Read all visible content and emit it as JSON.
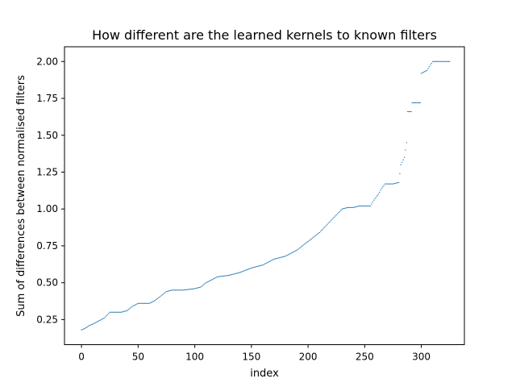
{
  "chart_data": {
    "type": "scatter",
    "title": "How different are the learned kernels to known filters",
    "xlabel": "index",
    "ylabel": "Sum of differences between normalised filters",
    "xlim": [
      -15,
      338
    ],
    "ylim": [
      0.08,
      2.1
    ],
    "xticks": [
      0,
      50,
      100,
      150,
      200,
      250,
      300
    ],
    "yticks": [
      0.25,
      0.5,
      0.75,
      1.0,
      1.25,
      1.5,
      1.75,
      2.0
    ],
    "ytick_labels": [
      "0.25",
      "0.50",
      "0.75",
      "1.00",
      "1.25",
      "1.50",
      "1.75",
      "2.00"
    ],
    "grid": false,
    "marker_color": "#1f77b4",
    "curve_points": [
      [
        0,
        0.18
      ],
      [
        3,
        0.19
      ],
      [
        7,
        0.21
      ],
      [
        10,
        0.22
      ],
      [
        15,
        0.24
      ],
      [
        20,
        0.26
      ],
      [
        25,
        0.3
      ],
      [
        30,
        0.3
      ],
      [
        35,
        0.3
      ],
      [
        40,
        0.31
      ],
      [
        45,
        0.34
      ],
      [
        50,
        0.36
      ],
      [
        55,
        0.36
      ],
      [
        60,
        0.36
      ],
      [
        65,
        0.38
      ],
      [
        70,
        0.41
      ],
      [
        75,
        0.44
      ],
      [
        80,
        0.45
      ],
      [
        90,
        0.45
      ],
      [
        100,
        0.46
      ],
      [
        105,
        0.47
      ],
      [
        110,
        0.5
      ],
      [
        115,
        0.52
      ],
      [
        120,
        0.54
      ],
      [
        130,
        0.55
      ],
      [
        140,
        0.57
      ],
      [
        150,
        0.6
      ],
      [
        160,
        0.62
      ],
      [
        165,
        0.64
      ],
      [
        170,
        0.66
      ],
      [
        180,
        0.68
      ],
      [
        185,
        0.7
      ],
      [
        190,
        0.72
      ],
      [
        195,
        0.75
      ],
      [
        200,
        0.78
      ],
      [
        205,
        0.81
      ],
      [
        210,
        0.84
      ],
      [
        215,
        0.88
      ],
      [
        220,
        0.92
      ],
      [
        225,
        0.96
      ],
      [
        230,
        1.0
      ],
      [
        235,
        1.01
      ],
      [
        240,
        1.01
      ],
      [
        245,
        1.02
      ],
      [
        255,
        1.02
      ],
      [
        258,
        1.06
      ],
      [
        262,
        1.1
      ],
      [
        265,
        1.14
      ],
      [
        268,
        1.17
      ],
      [
        275,
        1.17
      ],
      [
        280,
        1.18
      ],
      [
        282,
        1.3
      ],
      [
        285,
        1.35
      ],
      [
        287,
        1.45
      ],
      [
        288,
        1.66
      ],
      [
        291,
        1.66
      ],
      [
        292,
        1.72
      ],
      [
        299,
        1.72
      ],
      [
        300,
        1.92
      ],
      [
        305,
        1.94
      ],
      [
        310,
        2.0
      ],
      [
        325,
        2.0
      ]
    ]
  }
}
